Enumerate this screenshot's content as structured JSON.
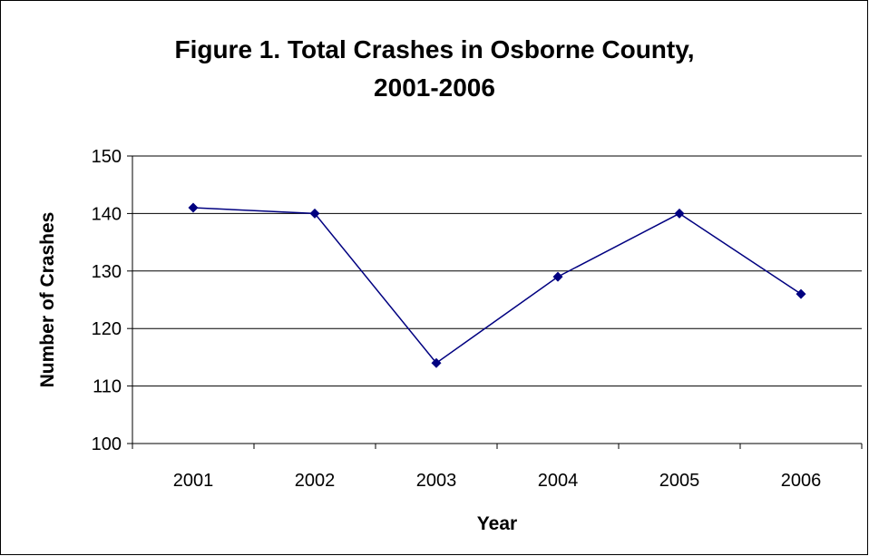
{
  "chart_data": {
    "type": "line",
    "title_line1": "Figure 1. Total Crashes in Osborne County,",
    "title_line2": "2001-2006",
    "xlabel": "Year",
    "ylabel": "Number of Crashes",
    "categories": [
      "2001",
      "2002",
      "2003",
      "2004",
      "2005",
      "2006"
    ],
    "series": [
      {
        "values": [
          141,
          140,
          114,
          129,
          140,
          126
        ]
      }
    ],
    "ylim": [
      100,
      150
    ],
    "yticks": [
      100,
      110,
      120,
      130,
      140,
      150
    ],
    "grid": true,
    "legend": "none",
    "colors": {
      "line": "#000080",
      "marker": "#000080",
      "grid": "#000000",
      "plot_bg": "#ffffff"
    }
  }
}
